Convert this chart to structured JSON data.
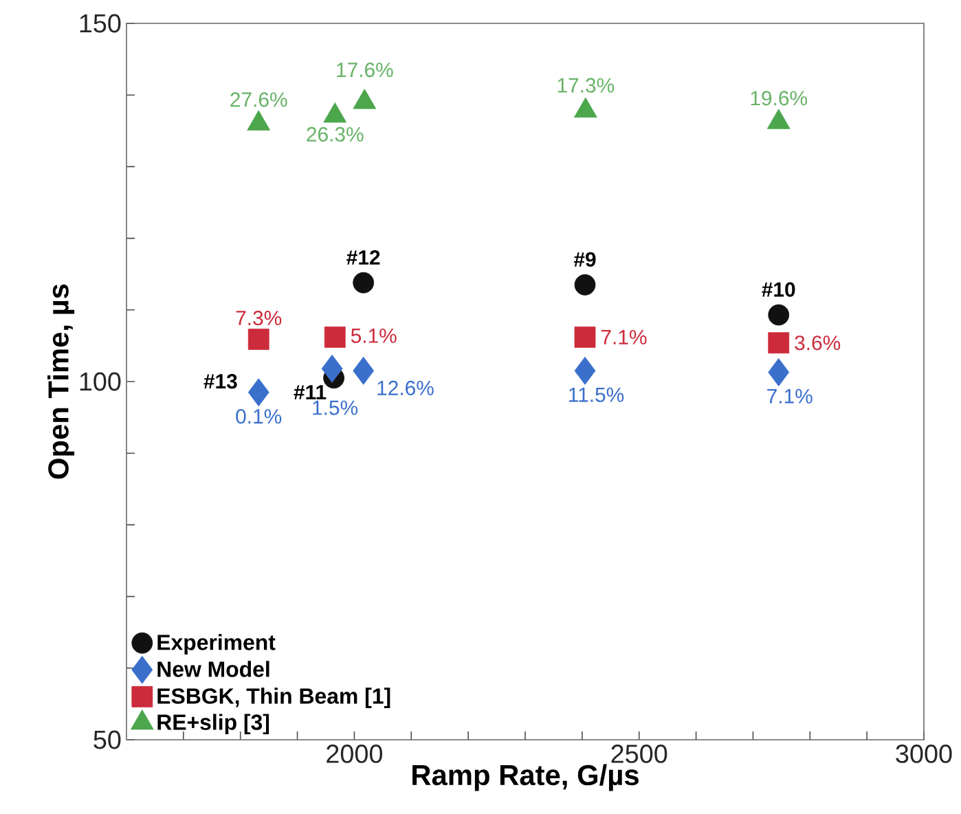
{
  "chart_data": {
    "type": "scatter",
    "xlabel": "Ramp Rate, G/µs",
    "ylabel": "Open Time, µs",
    "xlim": [
      1600,
      3000
    ],
    "ylim": [
      50,
      150
    ],
    "xticks": [
      {
        "value": 1700,
        "label": null
      },
      {
        "value": 1800,
        "label": null
      },
      {
        "value": 1900,
        "label": null
      },
      2000,
      {
        "value": 2100,
        "label": null
      },
      {
        "value": 2200,
        "label": null
      },
      {
        "value": 2300,
        "label": null
      },
      {
        "value": 2400,
        "label": null
      },
      2500,
      {
        "value": 2600,
        "label": null
      },
      {
        "value": 2700,
        "label": null
      },
      {
        "value": 2800,
        "label": null
      },
      {
        "value": 2900,
        "label": null
      },
      3000
    ],
    "yticks": [
      50,
      {
        "value": 60,
        "label": null
      },
      {
        "value": 70,
        "label": null
      },
      {
        "value": 80,
        "label": null
      },
      {
        "value": 90,
        "label": null
      },
      100,
      {
        "value": 110,
        "label": null
      },
      {
        "value": 120,
        "label": null
      },
      {
        "value": 130,
        "label": null
      },
      {
        "value": 140,
        "label": null
      },
      150
    ],
    "legend": "bottom left",
    "grid": false,
    "series": [
      {
        "name": "Experiment",
        "color": "#111111",
        "marker": "circle",
        "x": [
          1964,
          2016,
          2405,
          2745
        ],
        "values": [
          100.5,
          113.8,
          113.5,
          109.3
        ]
      },
      {
        "name": "New Model",
        "color": "#3a6fcc",
        "marker": "diamond",
        "x": [
          1832,
          1961,
          2016,
          2405,
          2745
        ],
        "values": [
          98.5,
          101.8,
          101.5,
          101.5,
          101.3
        ]
      },
      {
        "name": "ESBGK, Thin Beam [1]",
        "color": "#cc2b3b",
        "marker": "square",
        "x": [
          1832,
          1966,
          2405,
          2745
        ],
        "values": [
          105.9,
          106.2,
          106.2,
          105.4
        ]
      },
      {
        "name": "RE+slip [3]",
        "color": "#4ca64c",
        "marker": "triangle",
        "x": [
          1832,
          1966,
          2018,
          2406,
          2745
        ],
        "values": [
          136,
          137.1,
          139,
          137.8,
          136.2
        ]
      }
    ],
    "annotations": [
      {
        "text": "#12",
        "x": 2016,
        "y": 113.8
      },
      {
        "text": "#9",
        "x": 2405,
        "y": 113.5
      },
      {
        "text": "#10",
        "x": 2745,
        "y": 109.3
      },
      {
        "text": "#13",
        "x": 1832,
        "y": 98.5
      },
      {
        "text": "#11",
        "x": 1964,
        "y": 100.5
      },
      {
        "text": "27.6%",
        "x": 1832,
        "y": 136
      },
      {
        "text": "26.3%",
        "x": 1966,
        "y": 137.1
      },
      {
        "text": "17.6%",
        "x": 2018,
        "y": 139
      },
      {
        "text": "17.3%",
        "x": 2406,
        "y": 137.8
      },
      {
        "text": "19.6%",
        "x": 2745,
        "y": 136.2
      },
      {
        "text": "7.3%",
        "x": 1832,
        "y": 105.9
      },
      {
        "text": "5.1%",
        "x": 1966,
        "y": 106.2
      },
      {
        "text": "7.1%",
        "x": 2405,
        "y": 106.2
      },
      {
        "text": "3.6%",
        "x": 2745,
        "y": 105.4
      },
      {
        "text": "0.1%",
        "x": 1832,
        "y": 98.5
      },
      {
        "text": "1.5%",
        "x": 1961,
        "y": 101.8
      },
      {
        "text": "12.6%",
        "x": 2016,
        "y": 101.5
      },
      {
        "text": "11.5%",
        "x": 2405,
        "y": 101.5
      },
      {
        "text": "7.1%",
        "x": 2745,
        "y": 101.3
      }
    ]
  }
}
